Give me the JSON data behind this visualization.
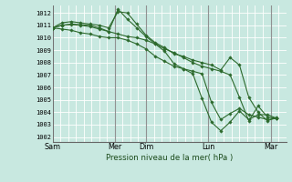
{
  "bg_color": "#c8e8e0",
  "grid_color": "#ffffff",
  "line_color": "#2d6a2d",
  "marker_color": "#2d6a2d",
  "title": "Pression niveau de la mer( hPa )",
  "ylabel_ticks": [
    1002,
    1003,
    1004,
    1005,
    1006,
    1007,
    1008,
    1009,
    1010,
    1011,
    1012
  ],
  "ylim": [
    1001.6,
    1012.6
  ],
  "x_tick_labels": [
    "Sam",
    "Mer",
    "Dim",
    "Lun",
    "Mar"
  ],
  "x_tick_positions": [
    0.0,
    2.0,
    3.0,
    5.0,
    7.0
  ],
  "vline_positions": [
    0.0,
    2.0,
    3.0,
    5.0,
    7.0
  ],
  "xlim": [
    0.0,
    7.5
  ],
  "n_xgrid": 30,
  "series": [
    {
      "x": [
        0.0,
        0.3,
        0.6,
        0.9,
        1.2,
        1.5,
        1.8,
        2.1,
        2.4,
        2.7,
        3.0,
        3.3,
        3.6,
        3.9,
        4.2,
        4.5,
        4.8,
        5.1,
        5.4,
        5.7,
        6.0,
        6.3,
        6.6,
        6.9,
        7.2
      ],
      "y": [
        1010.8,
        1011.0,
        1011.1,
        1011.05,
        1011.0,
        1010.8,
        1010.5,
        1010.3,
        1010.1,
        1010.0,
        1009.8,
        1009.5,
        1009.1,
        1008.8,
        1008.4,
        1008.0,
        1007.7,
        1007.5,
        1007.3,
        1007.0,
        1005.2,
        1003.3,
        1004.5,
        1003.6,
        1003.5
      ]
    },
    {
      "x": [
        0.0,
        0.3,
        0.6,
        0.9,
        1.2,
        1.5,
        1.8,
        2.1,
        2.4,
        2.7,
        3.0,
        3.3,
        3.6,
        3.9,
        4.2,
        4.5,
        4.8,
        5.1,
        5.4,
        5.7,
        6.0,
        6.3,
        6.6,
        6.9,
        7.2
      ],
      "y": [
        1010.8,
        1011.2,
        1011.3,
        1011.2,
        1011.1,
        1011.0,
        1010.8,
        1012.1,
        1012.0,
        1011.1,
        1010.2,
        1009.6,
        1009.2,
        1008.7,
        1008.5,
        1008.2,
        1008.0,
        1007.8,
        1007.4,
        1008.4,
        1007.8,
        1005.2,
        1004.0,
        1003.3,
        1003.6
      ]
    },
    {
      "x": [
        0.0,
        0.3,
        0.6,
        0.9,
        1.2,
        1.5,
        1.8,
        2.1,
        2.4,
        2.7,
        3.0,
        3.3,
        3.6,
        3.9,
        4.2,
        4.5,
        4.8,
        5.1,
        5.4,
        5.7,
        6.0,
        6.3,
        6.6,
        6.9,
        7.2
      ],
      "y": [
        1010.8,
        1011.0,
        1011.05,
        1011.0,
        1010.9,
        1010.7,
        1010.5,
        1012.3,
        1011.5,
        1010.8,
        1010.1,
        1009.5,
        1008.9,
        1007.9,
        1007.5,
        1007.1,
        1005.1,
        1003.2,
        1002.5,
        1003.2,
        1004.1,
        1003.4,
        1003.8,
        1003.8,
        1003.5
      ]
    },
    {
      "x": [
        0.0,
        0.3,
        0.6,
        0.9,
        1.2,
        1.5,
        1.8,
        2.1,
        2.4,
        2.7,
        3.0,
        3.3,
        3.6,
        3.9,
        4.2,
        4.5,
        4.8,
        5.1,
        5.4,
        5.7,
        6.0,
        6.3,
        6.6,
        6.9,
        7.2
      ],
      "y": [
        1010.8,
        1010.7,
        1010.6,
        1010.4,
        1010.3,
        1010.1,
        1010.0,
        1010.0,
        1009.8,
        1009.5,
        1009.1,
        1008.5,
        1008.1,
        1007.7,
        1007.5,
        1007.3,
        1007.1,
        1004.8,
        1003.4,
        1003.9,
        1004.3,
        1003.8,
        1003.6,
        1003.4,
        1003.5
      ]
    }
  ]
}
